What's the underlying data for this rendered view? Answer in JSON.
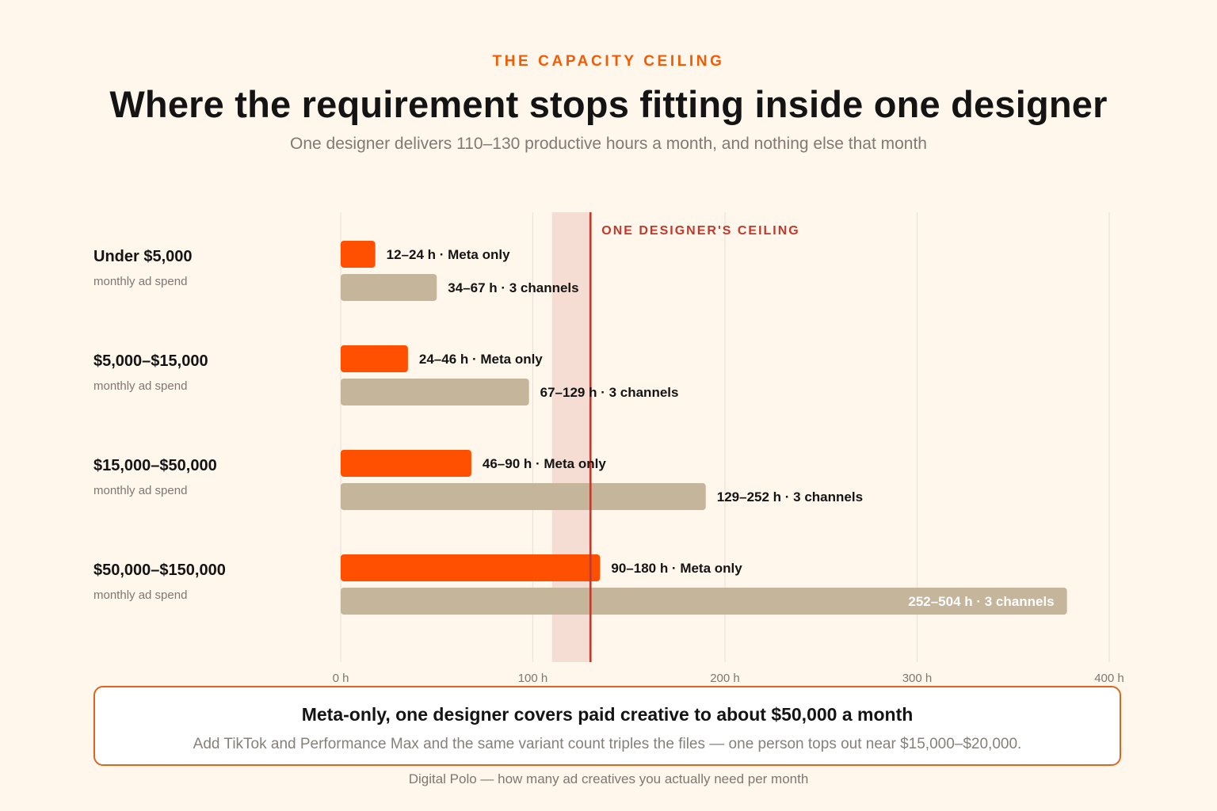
{
  "header": {
    "eyebrow": "THE CAPACITY CEILING",
    "title": "Where the requirement stops fitting inside one designer",
    "subtitle": "One designer delivers 110–130 productive hours a month, and nothing else that month"
  },
  "colors": {
    "meta_only": "#ff4f00",
    "three_channels": "#c4b59b",
    "ceiling_line": "#c0392b",
    "ceiling_band": "#f5ddd3",
    "grid": "#ebe3da",
    "accent": "#f25c05"
  },
  "chart_data": {
    "type": "bar",
    "orientation": "horizontal",
    "x_unit": "h",
    "xlim": [
      0,
      400
    ],
    "x_ticks": [
      0,
      100,
      200,
      300,
      400
    ],
    "x_tick_labels": [
      "0 h",
      "100 h",
      "200 h",
      "300 h",
      "400 h"
    ],
    "grid": true,
    "ceiling": {
      "label": "ONE DESIGNER'S CEILING",
      "band": [
        110,
        130
      ],
      "line": 130
    },
    "categories": [
      {
        "label": "Under $5,000",
        "sublabel": "monthly ad spend"
      },
      {
        "label": "$5,000–$15,000",
        "sublabel": "monthly ad spend"
      },
      {
        "label": "$15,000–$50,000",
        "sublabel": "monthly ad spend"
      },
      {
        "label": "$50,000–$150,000",
        "sublabel": "monthly ad spend"
      }
    ],
    "series": [
      {
        "key": "meta_only",
        "values": [
          18,
          35,
          68,
          135
        ],
        "labels": [
          "12–24 h · Meta only",
          "24–46 h · Meta only",
          "46–90 h · Meta only",
          "90–180 h · Meta only"
        ]
      },
      {
        "key": "three_channels",
        "values": [
          50,
          98,
          190,
          378
        ],
        "labels": [
          "34–67 h · 3 channels",
          "67–129 h · 3 channels",
          "129–252 h · 3 channels",
          "252–504 h · 3 channels"
        ]
      }
    ]
  },
  "callout": {
    "title": "Meta-only, one designer covers paid creative to about $50,000 a month",
    "body": "Add TikTok and Performance Max and the same variant count triples the files — one person tops out near $15,000–$20,000."
  },
  "footer": {
    "source": "Digital Polo — how many ad creatives you actually need per month"
  }
}
